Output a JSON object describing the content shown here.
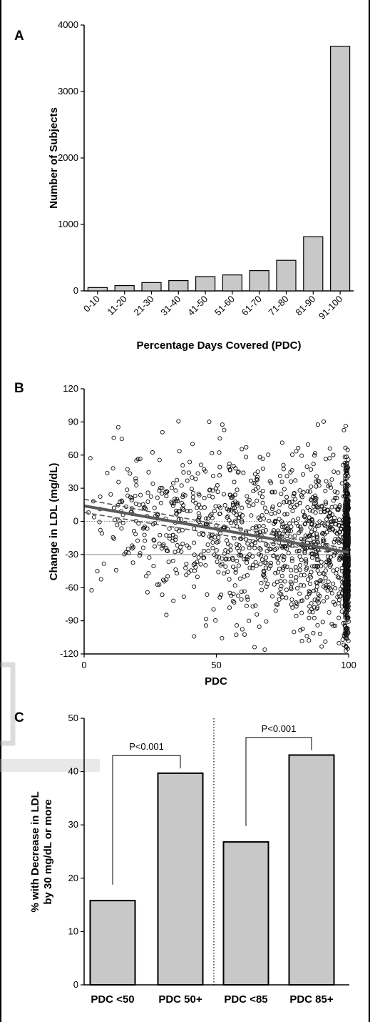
{
  "chart_data": [
    {
      "panel": "A",
      "type": "bar",
      "xlabel": "Percentage Days Covered (PDC)",
      "ylabel": "Number of Subjects",
      "ylim": [
        0,
        4000
      ],
      "yticks": [
        "0",
        "1000",
        "2000",
        "3000",
        "4000"
      ],
      "categories": [
        "0-10",
        "11-20",
        "21-30",
        "31-40",
        "41-50",
        "51-60",
        "61-70",
        "71-80",
        "81-90",
        "91-100"
      ],
      "values": [
        50,
        80,
        125,
        155,
        215,
        240,
        305,
        460,
        815,
        3680
      ],
      "bar_color": "#c8c8c8"
    },
    {
      "panel": "B",
      "type": "scatter",
      "xlabel": "PDC",
      "ylabel": "Change in LDL (mg/dL)",
      "xlim": [
        0,
        100
      ],
      "ylim": [
        -120,
        120
      ],
      "xticks": [
        "0",
        "50",
        "100"
      ],
      "yticks": [
        "-120",
        "-90",
        "-60",
        "-30",
        "0",
        "30",
        "60",
        "90",
        "120"
      ],
      "reference_lines": [
        0,
        -30
      ],
      "regression": {
        "x": [
          0,
          100
        ],
        "y": [
          14,
          -28
        ]
      },
      "confidence_band": {
        "x": [
          0,
          100
        ],
        "upper": [
          20,
          -25
        ],
        "lower": [
          8,
          -31
        ]
      },
      "marker": "open-circle"
    },
    {
      "panel": "C",
      "type": "bar",
      "ylabel": "% with Decrease in LDL by 30 mg/dL or more",
      "ylim": [
        0,
        50
      ],
      "yticks": [
        "0",
        "10",
        "20",
        "30",
        "40",
        "50"
      ],
      "categories": [
        "PDC <50",
        "PDC 50+",
        "PDC <85",
        "PDC 85+"
      ],
      "values": [
        15.8,
        39.7,
        26.8,
        43.1
      ],
      "annotations": [
        "P<0.001",
        "P<0.001"
      ],
      "bar_color": "#c8c8c8"
    }
  ]
}
